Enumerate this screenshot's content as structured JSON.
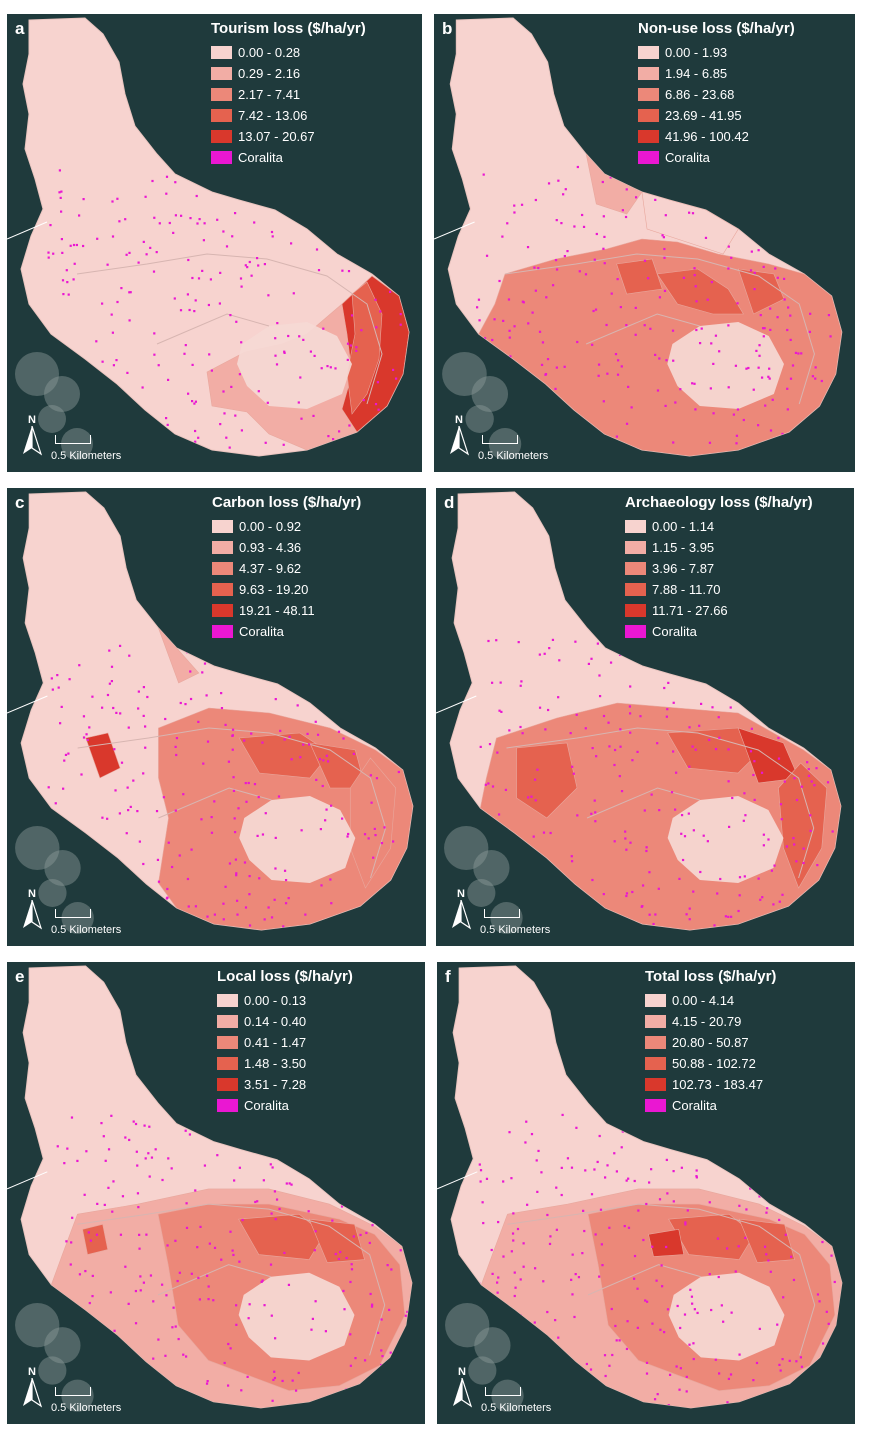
{
  "colors": {
    "classes": [
      "#f7d3cf",
      "#f2ada5",
      "#ec8879",
      "#e5624f",
      "#d9382c"
    ],
    "coralita": "#ea17d2",
    "sea": "#1f3a3c"
  },
  "map_common": {
    "north_label": "N",
    "scale_label": "0.5 Kilometers",
    "north_icon": "north-arrow-icon"
  },
  "panels": [
    {
      "letter": "a",
      "title": "Tourism loss ($/ha/yr)",
      "classes": [
        "0.00 - 0.28",
        "0.29 - 2.16",
        "2.17 - 7.41",
        "7.42 - 13.06",
        "13.07 - 20.67"
      ],
      "coralita_label": "Coralita"
    },
    {
      "letter": "b",
      "title": "Non-use loss ($/ha/yr)",
      "classes": [
        "0.00 - 1.93",
        "1.94 - 6.85",
        "6.86 - 23.68",
        "23.69 - 41.95",
        "41.96 - 100.42"
      ],
      "coralita_label": "Coralita"
    },
    {
      "letter": "c",
      "title": "Carbon loss ($/ha/yr)",
      "classes": [
        "0.00 - 0.92",
        "0.93 - 4.36",
        "4.37 - 9.62",
        "9.63 - 19.20",
        "19.21 - 48.11"
      ],
      "coralita_label": "Coralita"
    },
    {
      "letter": "d",
      "title": "Archaeology loss ($/ha/yr)",
      "classes": [
        "0.00 - 1.14",
        "1.15 - 3.95",
        "3.96 - 7.87",
        "7.88 - 11.70",
        "11.71 - 27.66"
      ],
      "coralita_label": "Coralita"
    },
    {
      "letter": "e",
      "title": "Local loss ($/ha/yr)",
      "classes": [
        "0.00 - 0.13",
        "0.14 - 0.40",
        "0.41 - 1.47",
        "1.48 - 3.50",
        "3.51 - 7.28"
      ],
      "coralita_label": "Coralita"
    },
    {
      "letter": "f",
      "title": "Total loss ($/ha/yr)",
      "classes": [
        "0.00 - 4.14",
        "4.15 - 20.79",
        "20.80 - 50.87",
        "50.88 - 102.72",
        "102.73 - 183.47"
      ],
      "coralita_label": "Coralita"
    }
  ]
}
